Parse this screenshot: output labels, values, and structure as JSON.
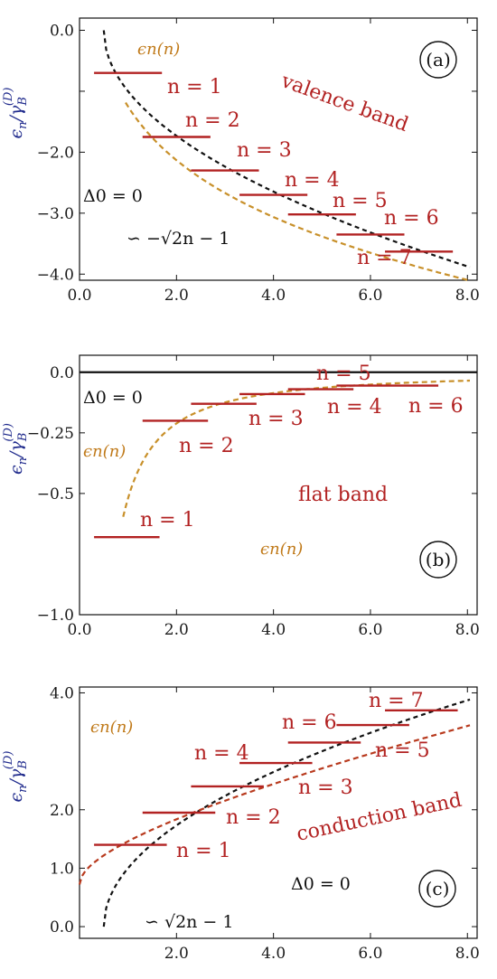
{
  "colors": {
    "levels": "#b22222",
    "curve_orange": "#c8902a",
    "curve_red": "#b83a1e",
    "black": "#111111",
    "ylabel": "#1f2a8c"
  },
  "chart_data": [
    {
      "type": "line",
      "panel": "(a)",
      "title": "",
      "band_label": "valence band",
      "ylabel": "ϵn/γB(D)",
      "xlabel": "",
      "xlim": [
        0,
        8.2
      ],
      "ylim": [
        -4.1,
        0.2
      ],
      "x_ticks": [
        0,
        2,
        4,
        6,
        8
      ],
      "x_tick_labels": [
        "0.0",
        "2.0",
        "4.0",
        "6.0",
        "8.0"
      ],
      "y_ticks": [
        0,
        -1,
        -2,
        -3,
        -4
      ],
      "y_tick_labels": [
        "0.0",
        "",
        "−2.0",
        "−3.0",
        "−4.0"
      ],
      "delta_text": "Δ0 = 0",
      "asymptote_text": "∽ −√2n − 1",
      "curve_text": "ϵn(n)",
      "levels": [
        {
          "n": 1,
          "label": "n = 1",
          "x0": 0.3,
          "x1": 1.7,
          "y": -0.7
        },
        {
          "n": 2,
          "label": "n = 2",
          "x0": 1.3,
          "x1": 2.7,
          "y": -1.75
        },
        {
          "n": 3,
          "label": "n = 3",
          "x0": 2.3,
          "x1": 3.7,
          "y": -2.3
        },
        {
          "n": 4,
          "label": "n = 4",
          "x0": 3.3,
          "x1": 4.7,
          "y": -2.7
        },
        {
          "n": 5,
          "label": "n = 5",
          "x0": 4.3,
          "x1": 5.7,
          "y": -3.02
        },
        {
          "n": 6,
          "label": "n = 6",
          "x0": 5.3,
          "x1": 6.7,
          "y": -3.35
        },
        {
          "n": 7,
          "label": "n = 7",
          "x0": 6.3,
          "x1": 7.7,
          "y": -3.63
        }
      ]
    },
    {
      "type": "line",
      "panel": "(b)",
      "title": "",
      "band_label": "flat band",
      "ylabel": "ϵn/γB(D)",
      "xlabel": "",
      "xlim": [
        0,
        8.2
      ],
      "ylim": [
        -1.0,
        0.07
      ],
      "x_ticks": [
        0,
        2,
        4,
        6,
        8
      ],
      "x_tick_labels": [
        "0.0",
        "2.0",
        "4.0",
        "6.0",
        "8.0"
      ],
      "y_ticks": [
        0,
        -0.25,
        -0.5,
        -1.0
      ],
      "y_tick_labels": [
        "0.0",
        "−0.25",
        "−0.5",
        "−1.0"
      ],
      "delta_text": "Δ0 = 0",
      "curve_text": "ϵn(n)",
      "curve_text_2": "ϵn(n)",
      "levels": [
        {
          "n": 1,
          "label": "n = 1",
          "x0": 0.3,
          "x1": 1.65,
          "y": -0.68
        },
        {
          "n": 2,
          "label": "n = 2",
          "x0": 1.3,
          "x1": 2.65,
          "y": -0.2
        },
        {
          "n": 3,
          "label": "n = 3",
          "x0": 2.3,
          "x1": 3.65,
          "y": -0.13
        },
        {
          "n": 4,
          "label": "n = 4",
          "x0": 3.3,
          "x1": 4.65,
          "y": -0.09
        },
        {
          "n": 5,
          "label": "n = 5",
          "x0": 4.3,
          "x1": 5.65,
          "y": -0.07
        },
        {
          "n": 6,
          "label": "n = 6",
          "x0": 5.3,
          "x1": 7.4,
          "y": -0.055
        }
      ]
    },
    {
      "type": "line",
      "panel": "(c)",
      "title": "",
      "band_label": "conduction band",
      "ylabel": "ϵn/γB(D)",
      "xlabel": "",
      "xlim": [
        0,
        8.2
      ],
      "ylim": [
        -0.2,
        4.1
      ],
      "x_ticks": [
        0,
        2,
        4,
        6,
        8
      ],
      "x_tick_labels": [
        "",
        "2.0",
        "4.0",
        "6.0",
        "8.0"
      ],
      "y_ticks": [
        0,
        1,
        2,
        4
      ],
      "y_tick_labels": [
        "0.0",
        "1.0",
        "2.0",
        "4.0"
      ],
      "delta_text": "Δ0 = 0",
      "asymptote_text": "∽ √2n − 1",
      "curve_text": "ϵn(n)",
      "levels": [
        {
          "n": 1,
          "label": "n = 1",
          "x0": 0.3,
          "x1": 1.8,
          "y": 1.4
        },
        {
          "n": 2,
          "label": "n = 2",
          "x0": 1.3,
          "x1": 2.8,
          "y": 1.95
        },
        {
          "n": 3,
          "label": "n = 3",
          "x0": 2.3,
          "x1": 3.8,
          "y": 2.4
        },
        {
          "n": 4,
          "label": "n = 4",
          "x0": 3.3,
          "x1": 4.8,
          "y": 2.8
        },
        {
          "n": 5,
          "label": "n = 5",
          "x0": 4.3,
          "x1": 5.8,
          "y": 3.15
        },
        {
          "n": 6,
          "label": "n = 6",
          "x0": 5.3,
          "x1": 6.8,
          "y": 3.45
        },
        {
          "n": 7,
          "label": "n = 7",
          "x0": 6.3,
          "x1": 7.8,
          "y": 3.7
        }
      ]
    }
  ]
}
